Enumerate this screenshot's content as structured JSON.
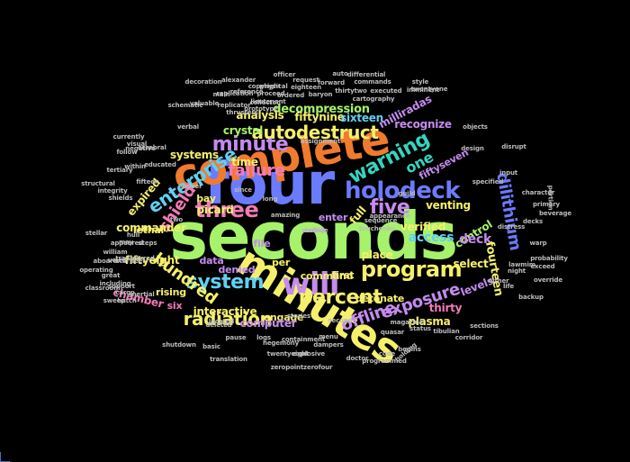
{
  "background": "#000000",
  "palette": {
    "green": "#a6f26b",
    "blue": "#6b7bff",
    "orange": "#f07a2e",
    "yellow": "#f5f06b",
    "purple": "#c58bf0",
    "teal": "#35d4c0",
    "pink": "#f27ab8",
    "cyan": "#5fd1f2",
    "red": "#e84c4c",
    "lime": "#c9f25a",
    "gray": "#bbbbbb"
  },
  "words": [
    {
      "text": "seconds",
      "color": "#a6f26b"
    },
    {
      "text": "four",
      "color": "#6b7bff"
    },
    {
      "text": "complete",
      "color": "#f07a2e"
    },
    {
      "text": "minutes",
      "color": "#f5f06b"
    },
    {
      "text": "will",
      "color": "#c58bf0"
    },
    {
      "text": "three",
      "color": "#f27ab8"
    },
    {
      "text": "holodeck",
      "color": "#6b7bff"
    },
    {
      "text": "warning",
      "color": "#35d4c0"
    },
    {
      "text": "program",
      "color": "#f5f06b"
    },
    {
      "text": "percent",
      "color": "#f5f06b"
    },
    {
      "text": "system",
      "color": "#5fd1f2"
    },
    {
      "text": "minute",
      "color": "#c58bf0"
    },
    {
      "text": "five",
      "color": "#c58bf0"
    },
    {
      "text": "autodestruct",
      "color": "#f5f06b"
    },
    {
      "text": "enterprise",
      "color": "#5fd1f2"
    },
    {
      "text": "radiation",
      "color": "#f5f06b"
    },
    {
      "text": "failure",
      "color": "#f27ab8"
    },
    {
      "text": "hundred",
      "color": "#f5f06b"
    },
    {
      "text": "shield",
      "color": "#f27ab8"
    },
    {
      "text": "exposure",
      "color": "#c58bf0"
    },
    {
      "text": "offline",
      "color": "#c58bf0"
    },
    {
      "text": "one",
      "color": "#35d4c0"
    },
    {
      "text": "dilithium",
      "color": "#6b7bff"
    },
    {
      "text": "decompression",
      "color": "#a6f26b"
    },
    {
      "text": "fiftynine",
      "color": "#f5f06b"
    },
    {
      "text": "sixteen",
      "color": "#5fd1f2"
    },
    {
      "text": "milliradas",
      "color": "#c58bf0"
    },
    {
      "text": "recognize",
      "color": "#c58bf0"
    },
    {
      "text": "fiftyseven",
      "color": "#c58bf0"
    },
    {
      "text": "venting",
      "color": "#f5f06b"
    },
    {
      "text": "verified",
      "color": "#f5f06b"
    },
    {
      "text": "access",
      "color": "#5fd1f2"
    },
    {
      "text": "control",
      "color": "#a6f26b"
    },
    {
      "text": "deck",
      "color": "#c58bf0"
    },
    {
      "text": "fourteen",
      "color": "#f5f06b"
    },
    {
      "text": "levels",
      "color": "#c58bf0"
    },
    {
      "text": "select",
      "color": "#f5f06b"
    },
    {
      "text": "thirty",
      "color": "#f27ab8"
    },
    {
      "text": "plasma",
      "color": "#f5f06b"
    },
    {
      "text": "detonate",
      "color": "#f5f06b"
    },
    {
      "text": "first",
      "color": "#f5f06b"
    },
    {
      "text": "place",
      "color": "#f5f06b"
    },
    {
      "text": "enter",
      "color": "#c58bf0"
    },
    {
      "text": "command",
      "color": "#f5f06b"
    },
    {
      "text": "engage",
      "color": "#f5f06b"
    },
    {
      "text": "chamber",
      "color": "#f27ab8"
    },
    {
      "text": "interactive",
      "color": "#f5f06b"
    },
    {
      "text": "computer",
      "color": "#c58bf0"
    },
    {
      "text": "fiftyeight",
      "color": "#f5f06b"
    },
    {
      "text": "commander",
      "color": "#f5f06b"
    },
    {
      "text": "expired",
      "color": "#f5f06b"
    },
    {
      "text": "systems",
      "color": "#f5f06b"
    },
    {
      "text": "crystal",
      "color": "#a6f26b"
    },
    {
      "text": "analysis",
      "color": "#f5f06b"
    },
    {
      "text": "time",
      "color": "#f5f06b"
    },
    {
      "text": "picard",
      "color": "#f5f06b"
    },
    {
      "text": "denied",
      "color": "#c58bf0"
    },
    {
      "text": "file",
      "color": "#c58bf0"
    },
    {
      "text": "per",
      "color": "#f5f06b"
    },
    {
      "text": "data",
      "color": "#c58bf0"
    },
    {
      "text": "rising",
      "color": "#f5f06b"
    },
    {
      "text": "six",
      "color": "#f27ab8"
    },
    {
      "text": "bay",
      "color": "#f5f06b"
    },
    {
      "text": "lethal",
      "color": "#f5f06b"
    },
    {
      "text": "full",
      "color": "#f5f06b"
    },
    {
      "text": "zeropointzerofour",
      "color": "#bbbbbb"
    },
    {
      "text": "twentyeight",
      "color": "#bbbbbb"
    },
    {
      "text": "dampers",
      "color": "#bbbbbb"
    },
    {
      "text": "containment",
      "color": "#bbbbbb"
    },
    {
      "text": "explosive",
      "color": "#bbbbbb"
    },
    {
      "text": "doctor",
      "color": "#bbbbbb"
    },
    {
      "text": "hegemony",
      "color": "#bbbbbb"
    },
    {
      "text": "menu",
      "color": "#bbbbbb"
    },
    {
      "text": "programmed",
      "color": "#bbbbbb"
    },
    {
      "text": "begins",
      "color": "#bbbbbb"
    },
    {
      "text": "code",
      "color": "#bbbbbb"
    },
    {
      "text": "holding",
      "color": "#bbbbbb"
    },
    {
      "text": "status",
      "color": "#bbbbbb"
    },
    {
      "text": "tibulian",
      "color": "#bbbbbb"
    },
    {
      "text": "corridor",
      "color": "#bbbbbb"
    },
    {
      "text": "sections",
      "color": "#bbbbbb"
    },
    {
      "text": "magazine",
      "color": "#bbbbbb"
    },
    {
      "text": "second",
      "color": "#bbbbbb"
    },
    {
      "text": "stories",
      "color": "#bbbbbb"
    },
    {
      "text": "shutdown",
      "color": "#bbbbbb"
    },
    {
      "text": "basic",
      "color": "#bbbbbb"
    },
    {
      "text": "including",
      "color": "#bbbbbb"
    },
    {
      "text": "classroom",
      "color": "#bbbbbb"
    },
    {
      "text": "operating",
      "color": "#bbbbbb"
    },
    {
      "text": "support",
      "color": "#bbbbbb"
    },
    {
      "text": "cargo",
      "color": "#bbbbbb"
    },
    {
      "text": "voice",
      "color": "#bbbbbb"
    },
    {
      "text": "aboard",
      "color": "#bbbbbb"
    },
    {
      "text": "stellar",
      "color": "#bbbbbb"
    },
    {
      "text": "structural",
      "color": "#bbbbbb"
    },
    {
      "text": "integrity",
      "color": "#bbbbbb"
    },
    {
      "text": "within",
      "color": "#bbbbbb"
    },
    {
      "text": "educated",
      "color": "#bbbbbb"
    },
    {
      "text": "fifteen",
      "color": "#bbbbbb"
    },
    {
      "text": "tertiary",
      "color": "#bbbbbb"
    },
    {
      "text": "negative",
      "color": "#bbbbbb"
    },
    {
      "text": "cerebral",
      "color": "#bbbbbb"
    },
    {
      "text": "verbal",
      "color": "#bbbbbb"
    },
    {
      "text": "schematic",
      "color": "#bbbbbb"
    },
    {
      "text": "valuable",
      "color": "#bbbbbb"
    },
    {
      "text": "decoration",
      "color": "#bbbbbb"
    },
    {
      "text": "alexander",
      "color": "#bbbbbb"
    },
    {
      "text": "reference",
      "color": "#bbbbbb"
    },
    {
      "text": "replicator",
      "color": "#bbbbbb"
    },
    {
      "text": "thrusters",
      "color": "#bbbbbb"
    },
    {
      "text": "prototype",
      "color": "#bbbbbb"
    },
    {
      "text": "lieutenant",
      "color": "#bbbbbb"
    },
    {
      "text": "physical",
      "color": "#bbbbbb"
    },
    {
      "text": "officer",
      "color": "#bbbbbb"
    },
    {
      "text": "ordered",
      "color": "#bbbbbb"
    },
    {
      "text": "eighteen",
      "color": "#bbbbbb"
    },
    {
      "text": "request",
      "color": "#bbbbbb"
    },
    {
      "text": "forward",
      "color": "#bbbbbb"
    },
    {
      "text": "thirtytwo",
      "color": "#bbbbbb"
    },
    {
      "text": "auto",
      "color": "#bbbbbb"
    },
    {
      "text": "differential",
      "color": "#bbbbbb"
    },
    {
      "text": "commands",
      "color": "#bbbbbb"
    },
    {
      "text": "style",
      "color": "#bbbbbb"
    },
    {
      "text": "imminent",
      "color": "#bbbbbb"
    },
    {
      "text": "twentyone",
      "color": "#bbbbbb"
    },
    {
      "text": "executed",
      "color": "#bbbbbb"
    },
    {
      "text": "cartography",
      "color": "#bbbbbb"
    },
    {
      "text": "baryon",
      "color": "#bbbbbb"
    },
    {
      "text": "replication",
      "color": "#bbbbbb"
    },
    {
      "text": "proceed",
      "color": "#bbbbbb"
    },
    {
      "text": "copyright",
      "color": "#bbbbbb"
    },
    {
      "text": "collector",
      "color": "#bbbbbb"
    },
    {
      "text": "assignment",
      "color": "#bbbbbb"
    },
    {
      "text": "objects",
      "color": "#bbbbbb"
    },
    {
      "text": "design",
      "color": "#bbbbbb"
    },
    {
      "text": "disrupt",
      "color": "#bbbbbb"
    },
    {
      "text": "input",
      "color": "#bbbbbb"
    },
    {
      "text": "character",
      "color": "#bbbbbb"
    },
    {
      "text": "primary",
      "color": "#bbbbbb"
    },
    {
      "text": "portion",
      "color": "#bbbbbb"
    },
    {
      "text": "beverage",
      "color": "#bbbbbb"
    },
    {
      "text": "decks",
      "color": "#bbbbbb"
    },
    {
      "text": "distress",
      "color": "#bbbbbb"
    },
    {
      "text": "specified",
      "color": "#bbbbbb"
    },
    {
      "text": "warp",
      "color": "#bbbbbb"
    },
    {
      "text": "probability",
      "color": "#bbbbbb"
    },
    {
      "text": "exceed",
      "color": "#bbbbbb"
    },
    {
      "text": "override",
      "color": "#bbbbbb"
    },
    {
      "text": "lawmim",
      "color": "#bbbbbb"
    },
    {
      "text": "backup",
      "color": "#bbbbbb"
    },
    {
      "text": "life",
      "color": "#bbbbbb"
    },
    {
      "text": "night",
      "color": "#bbbbbb"
    },
    {
      "text": "either",
      "color": "#bbbbbb"
    },
    {
      "text": "guild",
      "color": "#bbbbbb"
    },
    {
      "text": "appearance",
      "color": "#bbbbbb"
    },
    {
      "text": "sequence",
      "color": "#bbbbbb"
    },
    {
      "text": "touchenko",
      "color": "#bbbbbb"
    },
    {
      "text": "amazing",
      "color": "#bbbbbb"
    },
    {
      "text": "long",
      "color": "#bbbbbb"
    },
    {
      "text": "two",
      "color": "#bbbbbb"
    },
    {
      "text": "since",
      "color": "#bbbbbb"
    },
    {
      "text": "novel",
      "color": "#bbbbbb"
    },
    {
      "text": "hull",
      "color": "#bbbbbb"
    },
    {
      "text": "may",
      "color": "#bbbbbb"
    },
    {
      "text": "appeared",
      "color": "#bbbbbb"
    },
    {
      "text": "shields",
      "color": "#bbbbbb"
    },
    {
      "text": "great",
      "color": "#bbbbbb"
    },
    {
      "text": "starfleet",
      "color": "#bbbbbb"
    },
    {
      "text": "transferred",
      "color": "#bbbbbb"
    },
    {
      "text": "steps",
      "color": "#bbbbbb"
    },
    {
      "text": "follow",
      "color": "#bbbbbb"
    },
    {
      "text": "currently",
      "color": "#bbbbbb"
    },
    {
      "text": "main",
      "color": "#bbbbbb"
    },
    {
      "text": "hatch",
      "color": "#bbbbbb"
    },
    {
      "text": "deleted",
      "color": "#bbbbbb"
    },
    {
      "text": "located",
      "color": "#bbbbbb"
    },
    {
      "text": "translation",
      "color": "#bbbbbb"
    },
    {
      "text": "logs",
      "color": "#bbbbbb"
    },
    {
      "text": "inertial",
      "color": "#bbbbbb"
    },
    {
      "text": "sweep",
      "color": "#bbbbbb"
    },
    {
      "text": "william",
      "color": "#bbbbbb"
    },
    {
      "text": "quasar",
      "color": "#bbbbbb"
    },
    {
      "text": "pause",
      "color": "#bbbbbb"
    },
    {
      "text": "visual",
      "color": "#bbbbbb"
    },
    {
      "text": "today",
      "color": "#bbbbbb"
    },
    {
      "text": "matrix",
      "color": "#bbbbbb"
    },
    {
      "text": "noise",
      "color": "#bbbbbb"
    },
    {
      "text": "wish",
      "color": "#bbbbbb"
    },
    {
      "text": "active",
      "color": "#bbbbbb"
    },
    {
      "text": "particle",
      "color": "#bbbbbb"
    }
  ]
}
